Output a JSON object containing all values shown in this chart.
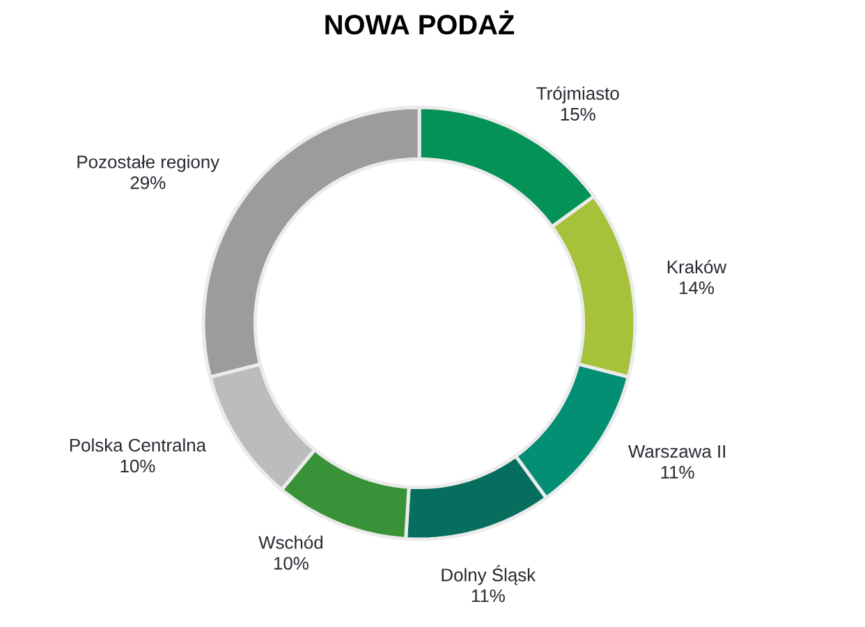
{
  "chart_data": {
    "type": "donut",
    "title": "NOWA PODAŻ",
    "categories": [
      "Trójmiasto",
      "Kraków",
      "Warszawa II",
      "Dolny Śląsk",
      "Wschód",
      "Polska Centralna",
      "Pozostałe regiony"
    ],
    "values": [
      15,
      14,
      11,
      11,
      10,
      10,
      29
    ],
    "value_labels": [
      "15%",
      "14%",
      "11%",
      "11%",
      "10%",
      "10%",
      "29%"
    ],
    "colors": [
      "#049256",
      "#a5c23a",
      "#038f74",
      "#056e5f",
      "#3a9238",
      "#bcbcbc",
      "#9c9c9c"
    ]
  }
}
